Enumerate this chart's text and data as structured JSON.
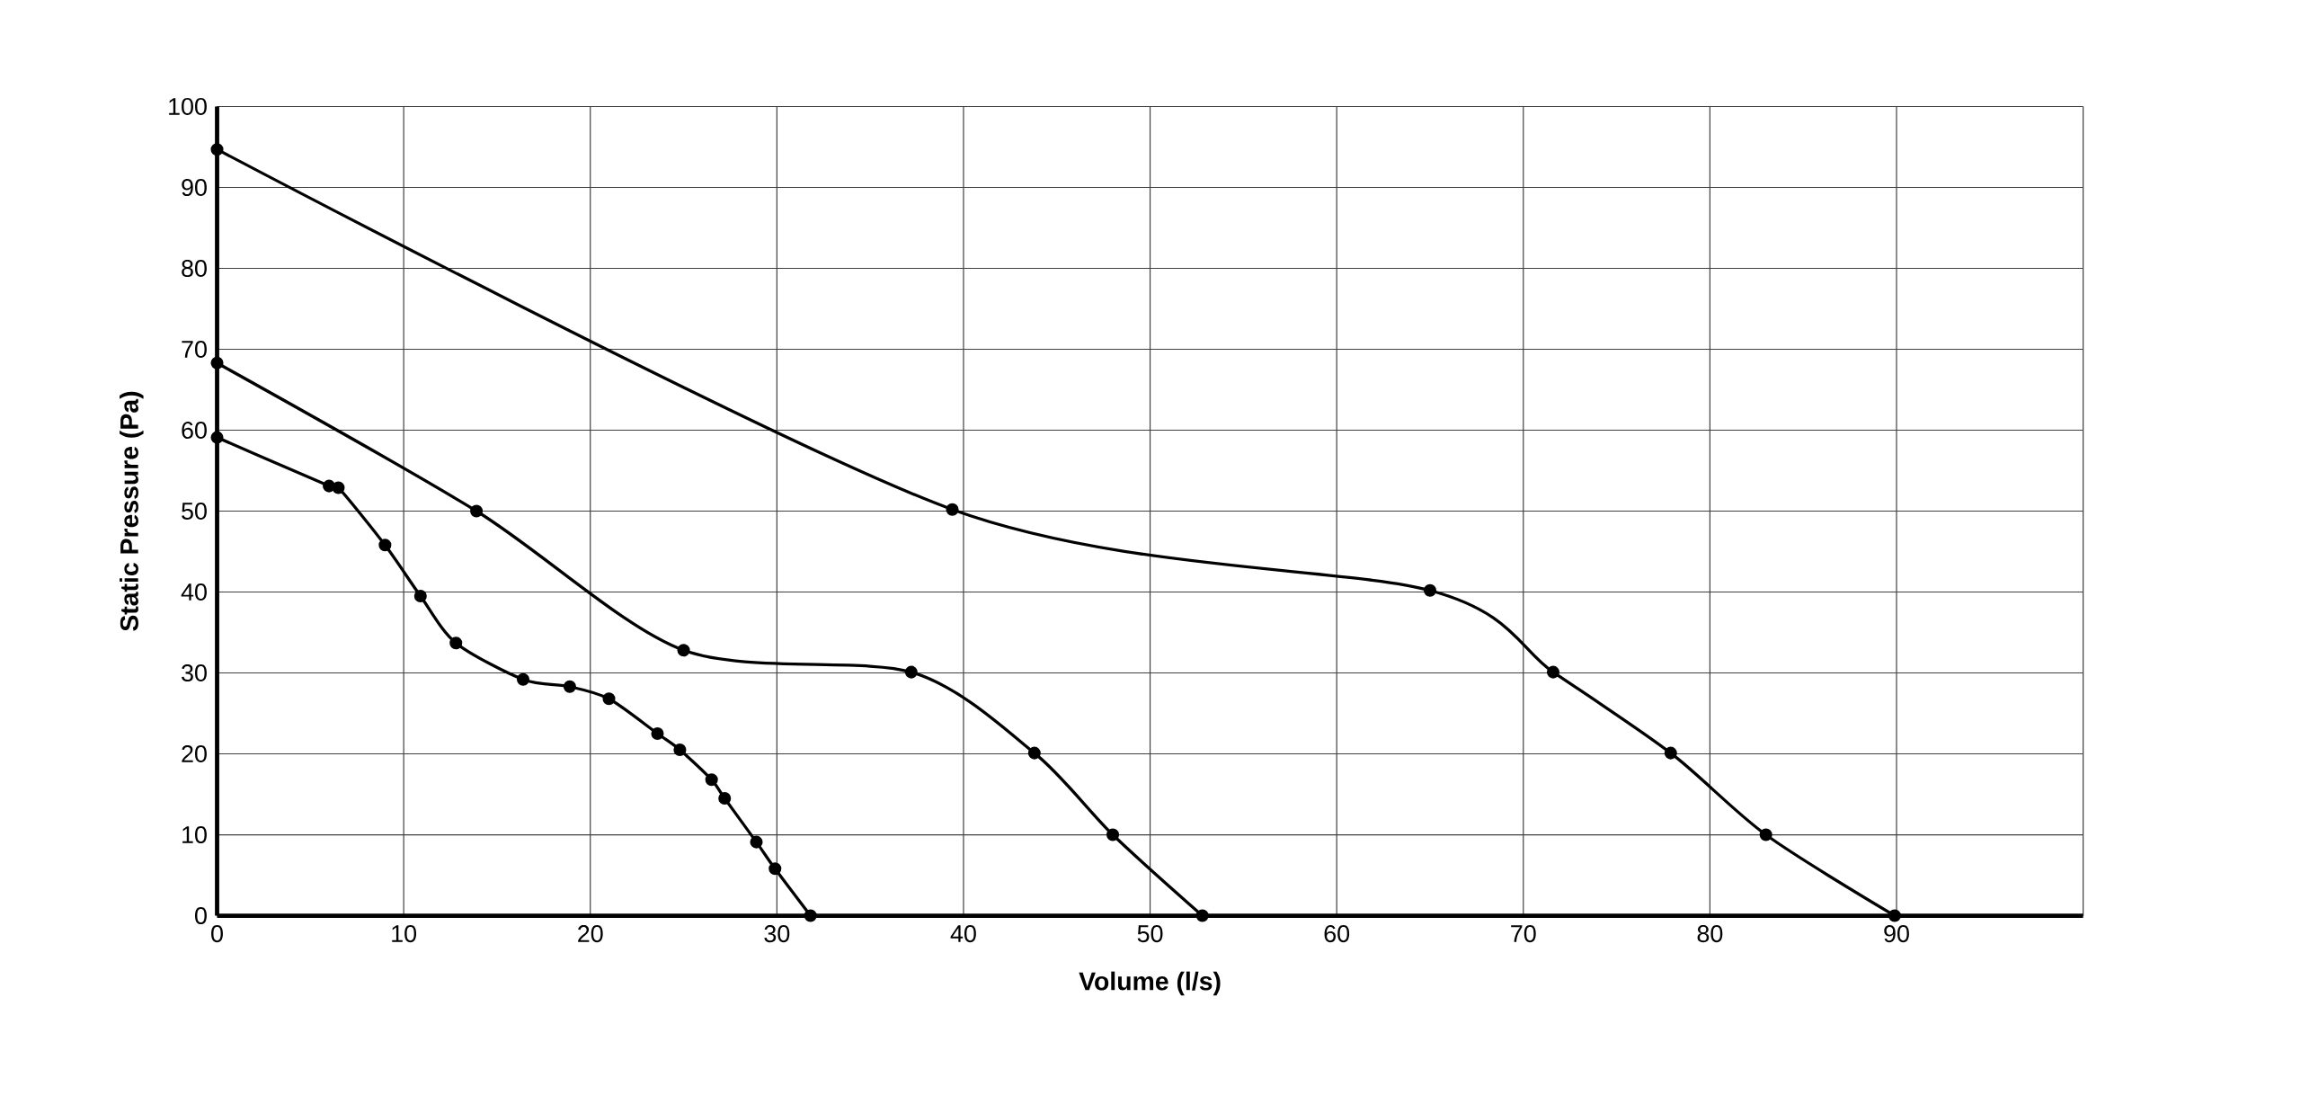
{
  "chart_data": {
    "type": "line",
    "xlabel": "Volume (l/s)",
    "ylabel": "Static Pressure (Pa)",
    "xlim": [
      0,
      100
    ],
    "ylim": [
      0,
      100
    ],
    "xticks": [
      0,
      10,
      20,
      30,
      40,
      50,
      60,
      70,
      80,
      90,
      {
        "value": 100,
        "label": null
      }
    ],
    "yticks": [
      0,
      10,
      20,
      30,
      40,
      50,
      60,
      70,
      80,
      90,
      100
    ],
    "grid": true,
    "marker": "circle",
    "line_style": "solid",
    "series": [
      {
        "color": "#000000",
        "x": [
          0,
          6.0,
          6.5,
          9.0,
          10.9,
          12.8,
          16.4,
          18.9,
          21.0,
          23.6,
          24.8,
          26.5,
          27.2,
          28.9,
          29.9,
          31.8
        ],
        "values": [
          59.1,
          53.1,
          52.9,
          45.8,
          39.5,
          33.7,
          29.2,
          28.3,
          26.8,
          22.5,
          20.5,
          16.8,
          14.5,
          9.1,
          5.8,
          0
        ]
      },
      {
        "color": "#000000",
        "x": [
          0,
          13.9,
          25.0,
          37.2,
          43.8,
          48.0,
          52.8
        ],
        "values": [
          68.3,
          50.0,
          32.8,
          30.1,
          20.1,
          10.0,
          0
        ]
      },
      {
        "color": "#000000",
        "x": [
          0,
          39.4,
          65.0,
          71.6,
          77.9,
          83.0,
          89.9
        ],
        "values": [
          94.7,
          50.2,
          40.2,
          30.1,
          20.1,
          10.0,
          0
        ]
      }
    ]
  }
}
